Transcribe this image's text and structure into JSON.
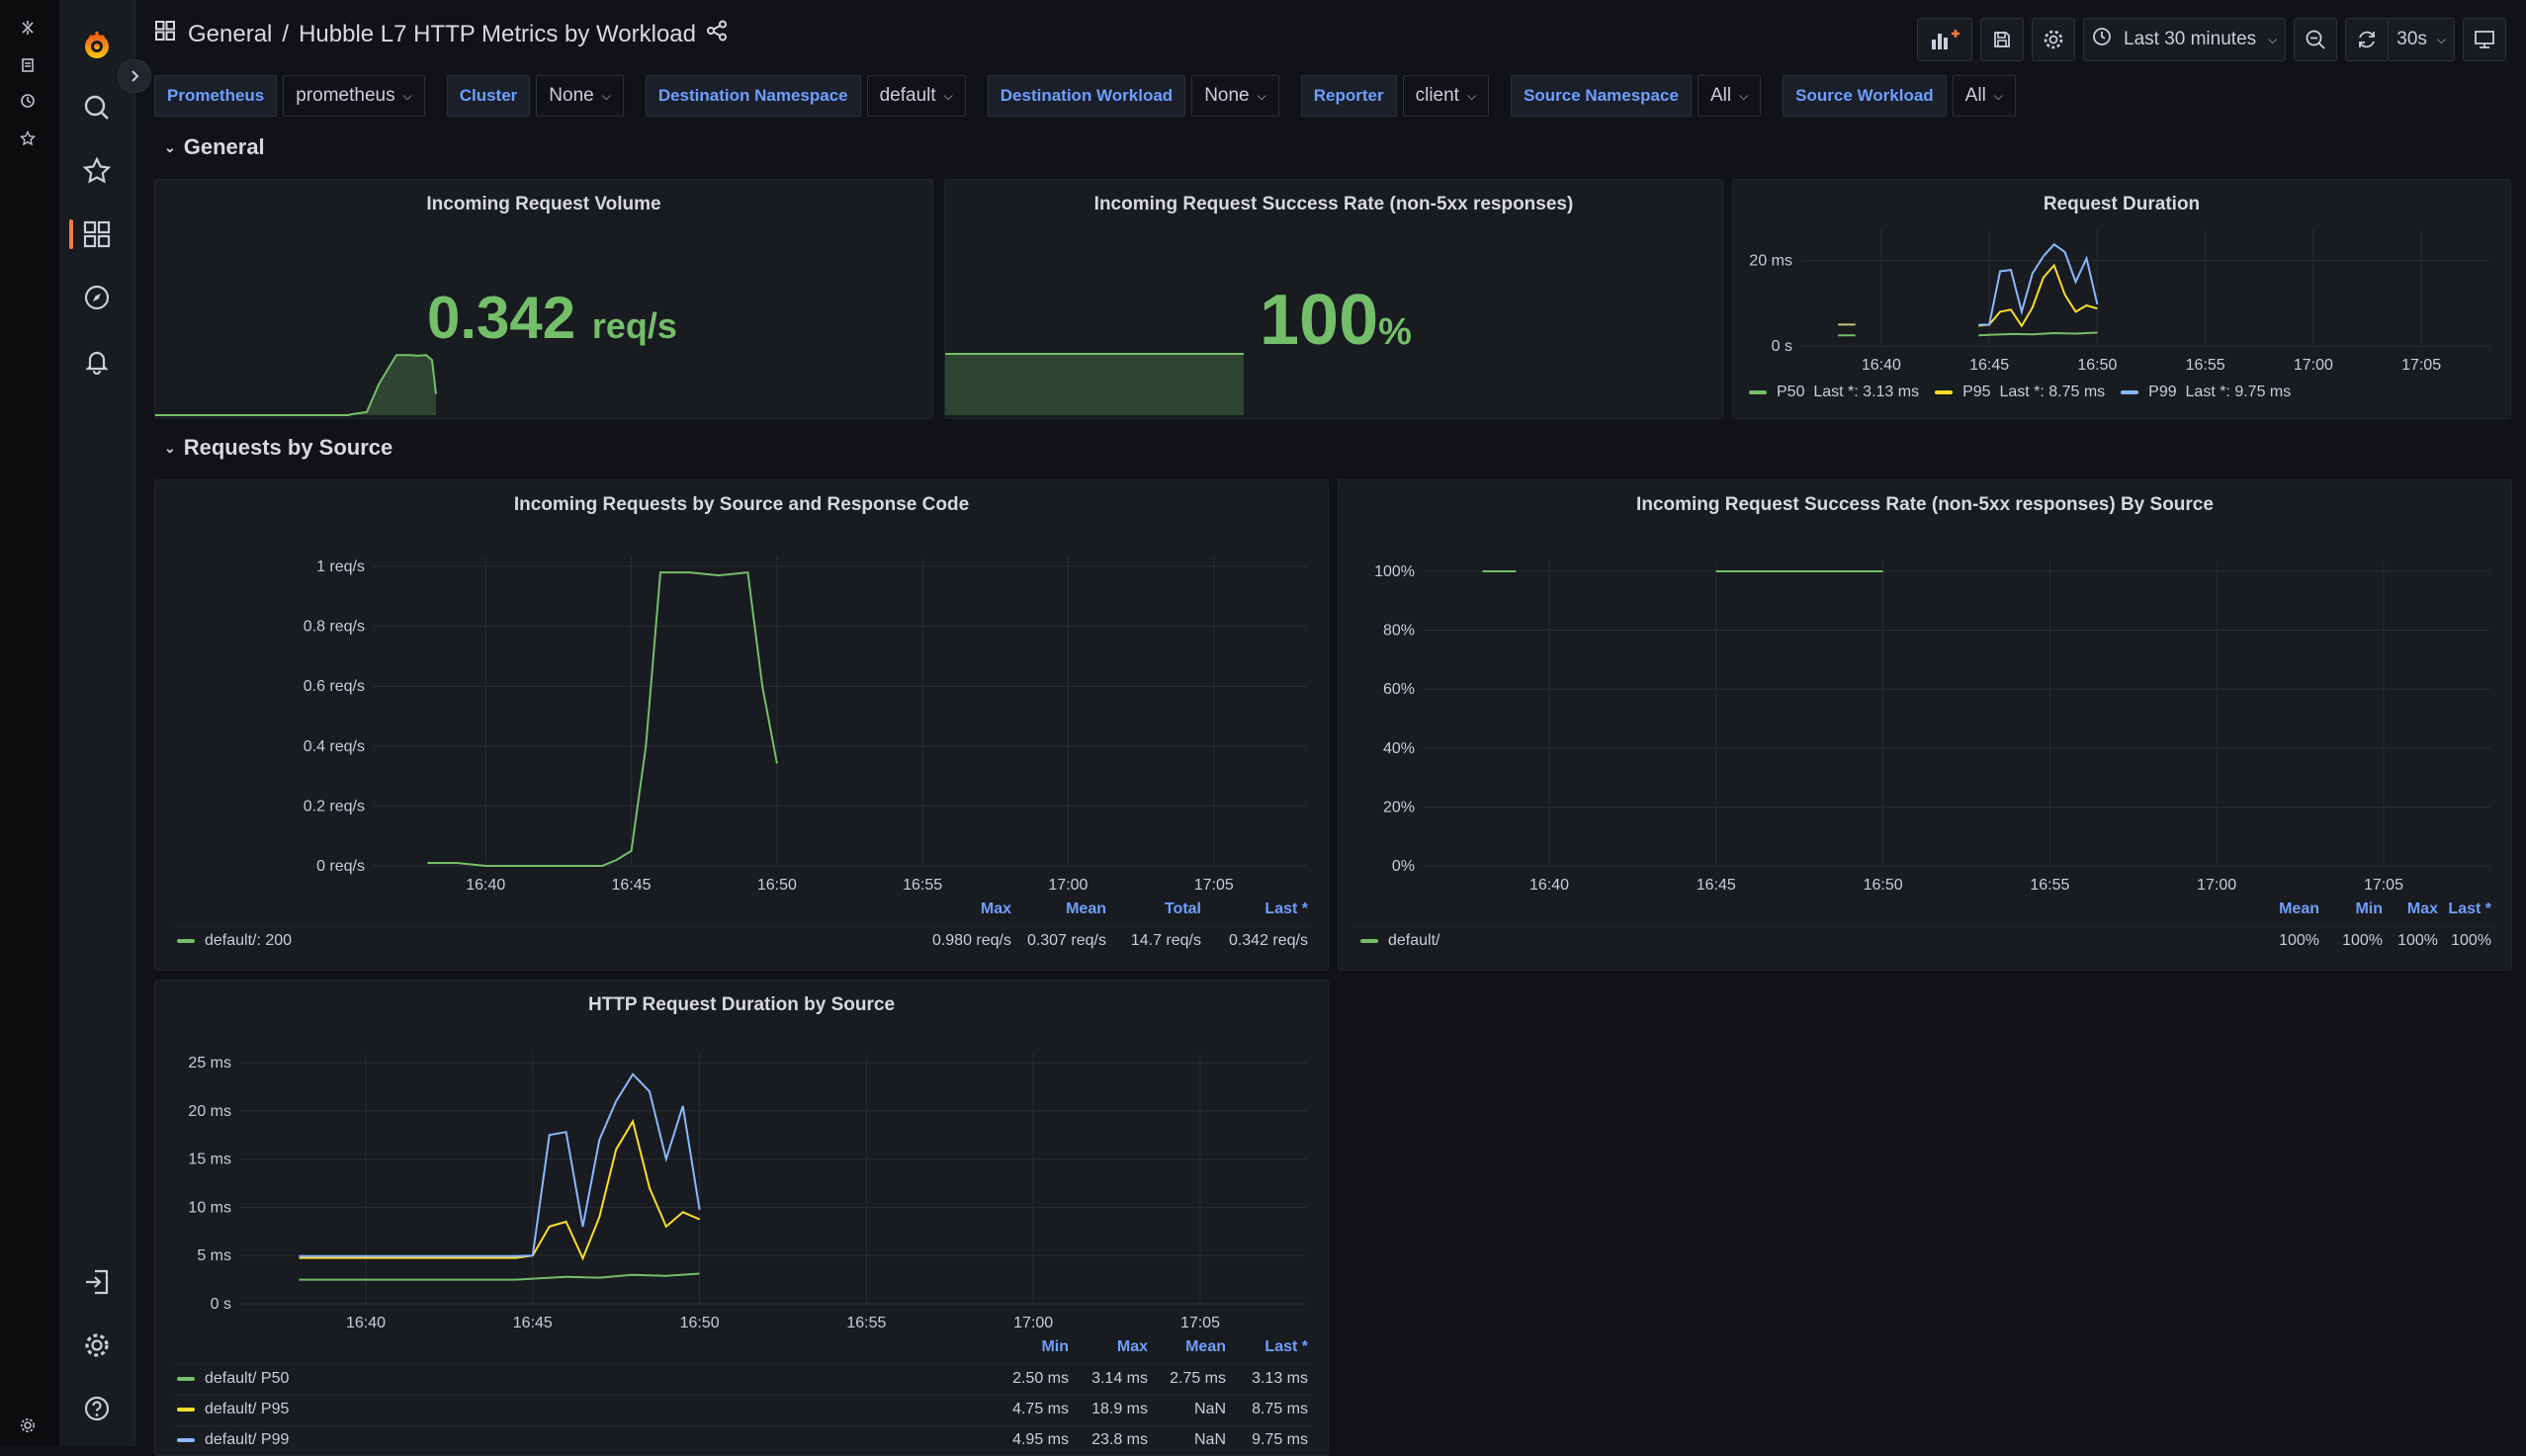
{
  "nav": {
    "breadcrumb_root": "General",
    "breadcrumb_sep": "/",
    "dashboard_title": "Hubble L7 HTTP Metrics by Workload"
  },
  "toolbar": {
    "time_range": "Last 30 minutes",
    "refresh_interval": "30s"
  },
  "variables": [
    {
      "label": "Prometheus",
      "value": "prometheus"
    },
    {
      "label": "Cluster",
      "value": "None"
    },
    {
      "label": "Destination Namespace",
      "value": "default"
    },
    {
      "label": "Destination Workload",
      "value": "None"
    },
    {
      "label": "Reporter",
      "value": "client"
    },
    {
      "label": "Source Namespace",
      "value": "All"
    },
    {
      "label": "Source Workload",
      "value": "All"
    }
  ],
  "rows": {
    "general": "General",
    "requests_by_source": "Requests by Source"
  },
  "panels": {
    "volume": {
      "title": "Incoming Request Volume",
      "value": "0.342",
      "unit": "req/s"
    },
    "success": {
      "title": "Incoming Request Success Rate (non-5xx responses)",
      "value": "100",
      "unit": "%"
    },
    "duration": {
      "title": "Request Duration",
      "legend": [
        {
          "name": "P50",
          "last": "Last *: 3.13 ms",
          "color": "#73bf69"
        },
        {
          "name": "P95",
          "last": "Last *: 8.75 ms",
          "color": "#fade2a"
        },
        {
          "name": "P99",
          "last": "Last *: 9.75 ms",
          "color": "#8ab8ff"
        }
      ]
    },
    "by_code": {
      "title": "Incoming Requests by Source and Response Code",
      "legend_headers": [
        "Max",
        "Mean",
        "Total",
        "Last *"
      ],
      "legend_rows": [
        {
          "name": "default/: 200",
          "color": "#73bf69",
          "stats": [
            "0.980 req/s",
            "0.307 req/s",
            "14.7 req/s",
            "0.342 req/s"
          ]
        }
      ]
    },
    "success_by_source": {
      "title": "Incoming Request Success Rate (non-5xx responses) By Source",
      "legend_headers": [
        "Mean",
        "Min",
        "Max",
        "Last *"
      ],
      "legend_rows": [
        {
          "name": "default/",
          "color": "#73bf69",
          "stats": [
            "100%",
            "100%",
            "100%",
            "100%"
          ]
        }
      ]
    },
    "duration_by_source": {
      "title": "HTTP Request Duration by Source",
      "legend_headers": [
        "Min",
        "Max",
        "Mean",
        "Last *"
      ],
      "legend_rows": [
        {
          "name": "default/ P50",
          "color": "#73bf69",
          "stats": [
            "2.50 ms",
            "3.14 ms",
            "2.75 ms",
            "3.13 ms"
          ]
        },
        {
          "name": "default/ P95",
          "color": "#fade2a",
          "stats": [
            "4.75 ms",
            "18.9 ms",
            "NaN",
            "8.75 ms"
          ]
        },
        {
          "name": "default/ P99",
          "color": "#8ab8ff",
          "stats": [
            "4.95 ms",
            "23.8 ms",
            "NaN",
            "9.75 ms"
          ]
        }
      ]
    }
  },
  "chart_data": [
    {
      "type": "area",
      "panel": "Incoming Request Volume",
      "series": [
        {
          "x": [
            "16:34",
            "16:40",
            "16:42",
            "16:43",
            "16:44",
            "16:45",
            "16:46",
            "16:47",
            "16:48",
            "16:49",
            "16:50"
          ],
          "values": [
            0.0,
            0.0,
            0.02,
            0.05,
            0.5,
            0.98,
            0.98,
            0.97,
            0.98,
            0.9,
            0.342
          ]
        }
      ]
    },
    {
      "type": "area",
      "panel": "Incoming Request Success Rate (non-5xx responses)",
      "series": [
        {
          "x": [
            "16:34",
            "16:50"
          ],
          "values": [
            1,
            1
          ]
        }
      ]
    },
    {
      "type": "line",
      "panel": "Request Duration",
      "x_ticks": [
        "16:40",
        "16:45",
        "16:50",
        "16:55",
        "17:00",
        "17:05"
      ],
      "y_ticks": [
        "0 s",
        "20 ms"
      ],
      "series": [
        {
          "name": "P50",
          "x": [
            "16:44.5",
            "16:45",
            "16:46",
            "16:47",
            "16:48",
            "16:49",
            "16:50"
          ],
          "values": [
            2.5,
            2.6,
            2.8,
            2.7,
            3.0,
            2.9,
            3.13
          ]
        },
        {
          "name": "P95",
          "x": [
            "16:44.5",
            "16:45",
            "16:45.5",
            "16:46",
            "16:46.5",
            "16:47",
            "16:47.5",
            "16:48",
            "16:48.5",
            "16:49",
            "16:49.5",
            "16:50"
          ],
          "values": [
            4.75,
            5,
            8,
            8.5,
            4.7,
            9,
            16,
            18.9,
            12,
            8,
            9.5,
            8.75
          ]
        },
        {
          "name": "P99",
          "x": [
            "16:44.5",
            "16:45",
            "16:45.5",
            "16:46",
            "16:46.5",
            "16:47",
            "16:47.5",
            "16:48",
            "16:48.5",
            "16:49",
            "16:49.5",
            "16:50"
          ],
          "values": [
            4.95,
            5,
            17.5,
            17.8,
            8,
            17,
            21,
            23.8,
            22,
            15,
            20.5,
            9.75
          ]
        }
      ]
    },
    {
      "type": "line",
      "panel": "Incoming Requests by Source and Response Code",
      "x_ticks": [
        "16:40",
        "16:45",
        "16:50",
        "16:55",
        "17:00",
        "17:05"
      ],
      "y_ticks": [
        "0 req/s",
        "0.2 req/s",
        "0.4 req/s",
        "0.6 req/s",
        "0.8 req/s",
        "1 req/s"
      ],
      "ylim": [
        0,
        1
      ],
      "series": [
        {
          "name": "default/: 200",
          "x": [
            "16:38",
            "16:39",
            "16:40",
            "16:44",
            "16:44.5",
            "16:45",
            "16:45.5",
            "16:46",
            "16:46.5",
            "16:47",
            "16:48",
            "16:49",
            "16:49.5",
            "16:50"
          ],
          "values": [
            0.01,
            0.01,
            0.0,
            0.0,
            0.02,
            0.05,
            0.4,
            0.98,
            0.98,
            0.98,
            0.97,
            0.98,
            0.6,
            0.342
          ]
        }
      ]
    },
    {
      "type": "line",
      "panel": "Incoming Request Success Rate (non-5xx responses) By Source",
      "x_ticks": [
        "16:40",
        "16:45",
        "16:50",
        "16:55",
        "17:00",
        "17:05"
      ],
      "y_ticks": [
        "0%",
        "20%",
        "40%",
        "60%",
        "80%",
        "100%"
      ],
      "ylim": [
        0,
        1
      ],
      "series": [
        {
          "name": "default/",
          "segments": [
            {
              "x": [
                "16:38",
                "16:39"
              ],
              "values": [
                1,
                1
              ]
            },
            {
              "x": [
                "16:45",
                "16:50"
              ],
              "values": [
                1,
                1
              ]
            }
          ]
        }
      ]
    },
    {
      "type": "line",
      "panel": "HTTP Request Duration by Source",
      "x_ticks": [
        "16:40",
        "16:45",
        "16:50",
        "16:55",
        "17:00",
        "17:05"
      ],
      "y_ticks": [
        "0 s",
        "5 ms",
        "10 ms",
        "15 ms",
        "20 ms",
        "25 ms"
      ],
      "ylim": [
        0,
        25
      ],
      "series": [
        {
          "name": "default/ P50",
          "x": [
            "16:38",
            "16:39",
            "16:44.5",
            "16:45",
            "16:46",
            "16:47",
            "16:48",
            "16:49",
            "16:50"
          ],
          "values": [
            2.5,
            2.5,
            2.5,
            2.6,
            2.8,
            2.7,
            3.0,
            2.9,
            3.13
          ]
        },
        {
          "name": "default/ P95",
          "x": [
            "16:38",
            "16:39",
            "16:44.5",
            "16:45",
            "16:45.5",
            "16:46",
            "16:46.5",
            "16:47",
            "16:47.5",
            "16:48",
            "16:48.5",
            "16:49",
            "16:49.5",
            "16:50"
          ],
          "values": [
            4.75,
            4.75,
            4.75,
            5,
            8,
            8.5,
            4.7,
            9,
            16,
            18.9,
            12,
            8,
            9.5,
            8.75
          ]
        },
        {
          "name": "default/ P99",
          "x": [
            "16:38",
            "16:39",
            "16:44.5",
            "16:45",
            "16:45.5",
            "16:46",
            "16:46.5",
            "16:47",
            "16:47.5",
            "16:48",
            "16:48.5",
            "16:49",
            "16:49.5",
            "16:50"
          ],
          "values": [
            4.95,
            4.95,
            4.95,
            5,
            17.5,
            17.8,
            8,
            17,
            21,
            23.8,
            22,
            15,
            20.5,
            9.75
          ]
        }
      ]
    }
  ]
}
